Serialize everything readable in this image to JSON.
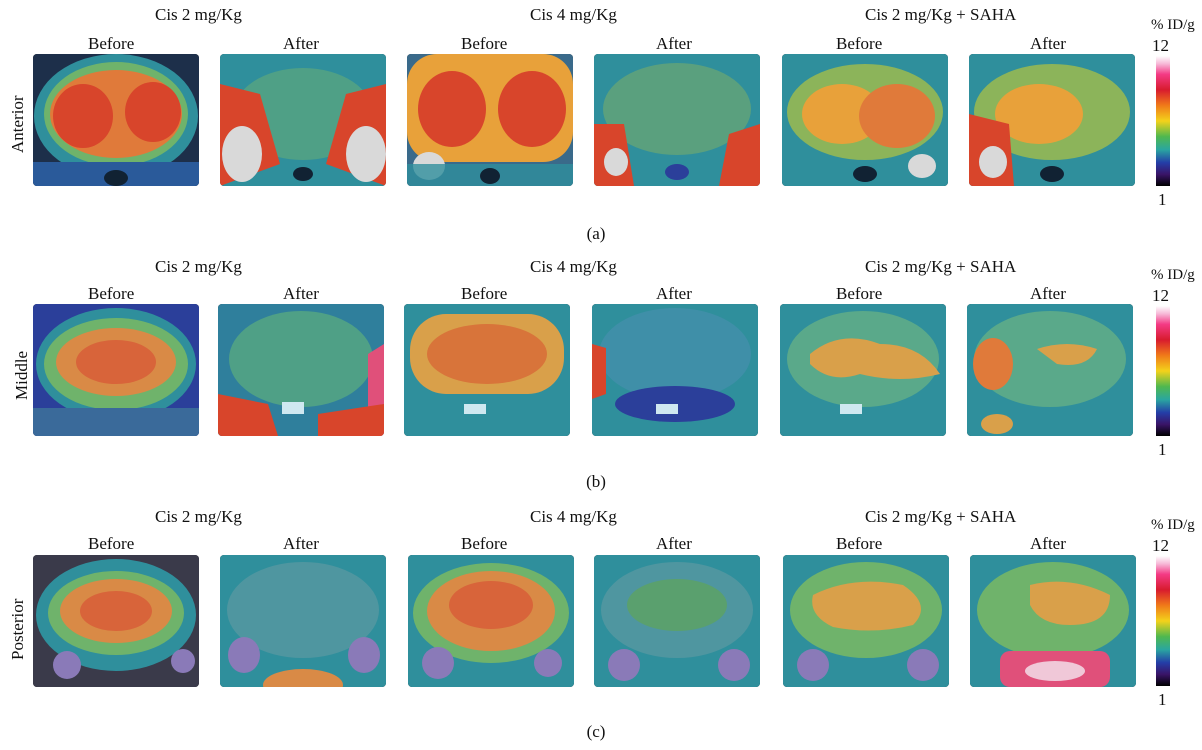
{
  "panels": [
    {
      "row_label": "Anterior",
      "caption": "(a)",
      "groups": [
        "Cis 2 mg/Kg",
        "Cis 4 mg/Kg",
        "Cis 2 mg/Kg + SAHA"
      ],
      "subtitles": [
        "Before",
        "After",
        "Before",
        "After",
        "Before",
        "After"
      ],
      "scale": {
        "unit": "% ID/g",
        "max": "12",
        "min": "1"
      }
    },
    {
      "row_label": "Middle",
      "caption": "(b)",
      "groups": [
        "Cis 2 mg/Kg",
        "Cis 4 mg/Kg",
        "Cis 2 mg/Kg + SAHA"
      ],
      "subtitles": [
        "Before",
        "After",
        "Before",
        "After",
        "Before",
        "After"
      ],
      "scale": {
        "unit": "% ID/g",
        "max": "12",
        "min": "1"
      }
    },
    {
      "row_label": "Posterior",
      "caption": "(c)",
      "groups": [
        "Cis 2 mg/Kg",
        "Cis 4 mg/Kg",
        "Cis 2 mg/Kg + SAHA"
      ],
      "subtitles": [
        "Before",
        "After",
        "Before",
        "After",
        "Before",
        "After"
      ],
      "scale": {
        "unit": "% ID/g",
        "max": "12",
        "min": "1"
      }
    }
  ],
  "colors": {
    "hot": "#d8452b",
    "warm": "#e8a13a",
    "mid": "#6fb36b",
    "cool": "#2f8f9c",
    "cold": "#2b3f9a"
  }
}
